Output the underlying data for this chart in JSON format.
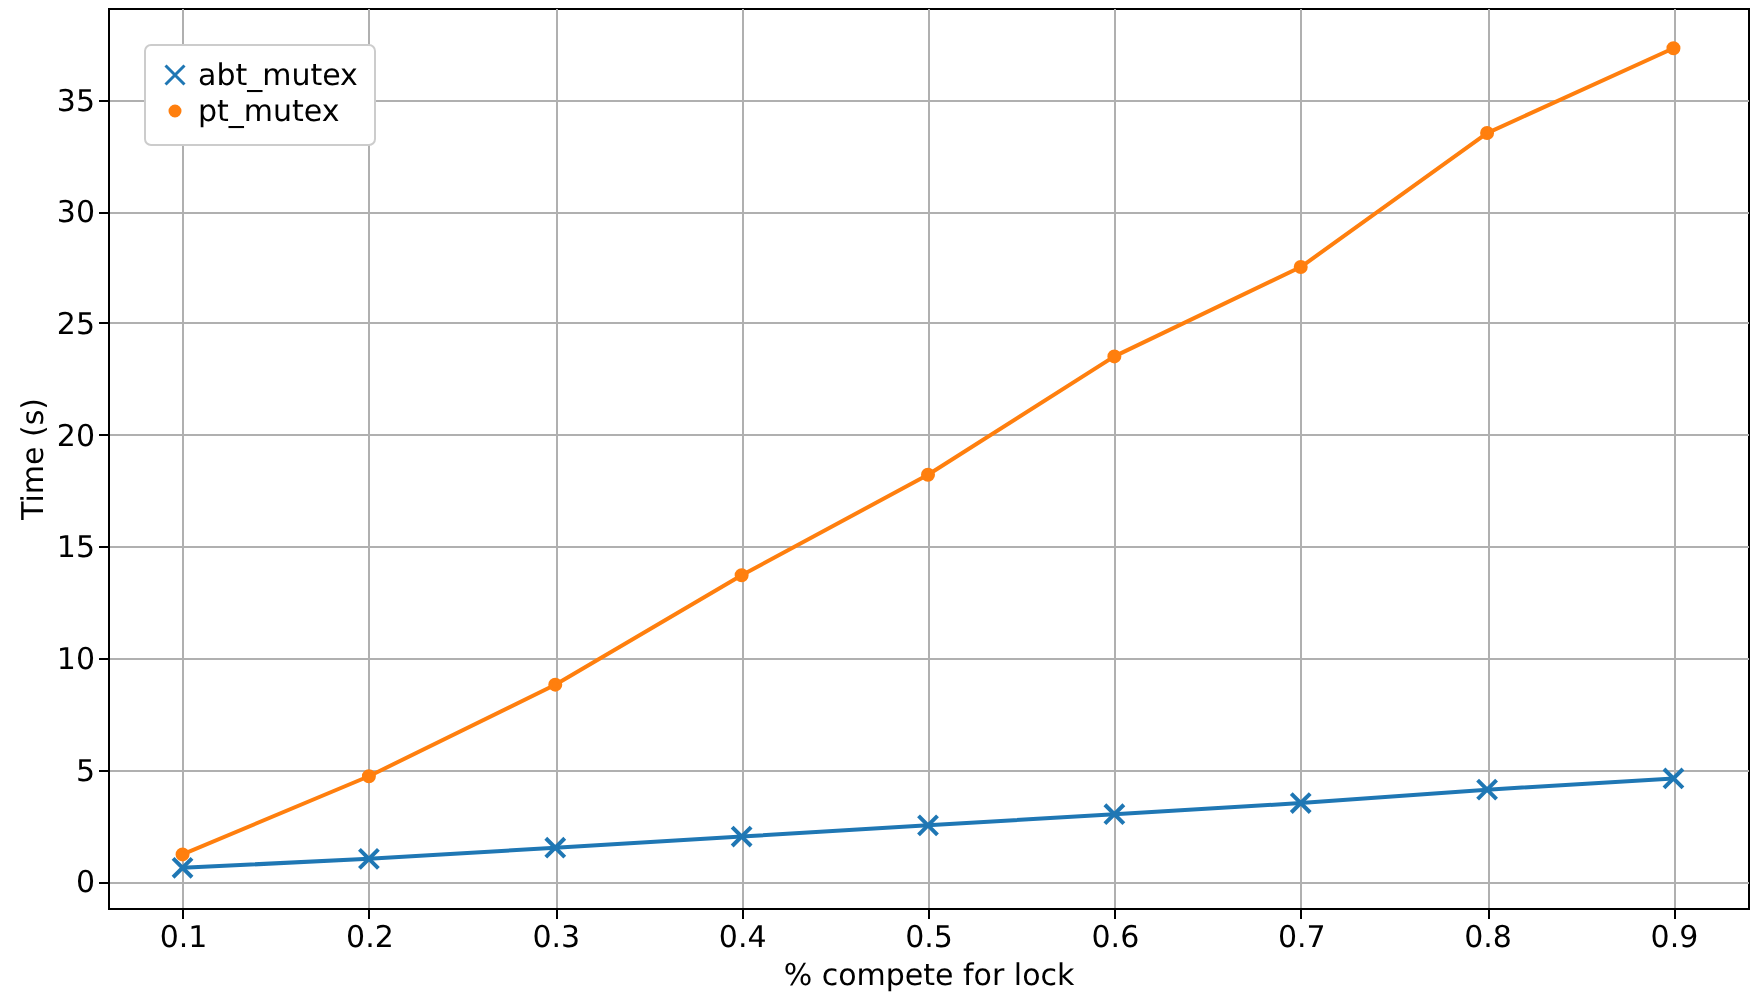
{
  "chart_data": {
    "type": "line",
    "xlabel": "% compete for lock",
    "ylabel": "Time (s)",
    "x": [
      0.1,
      0.2,
      0.3,
      0.4,
      0.5,
      0.6,
      0.7,
      0.8,
      0.9
    ],
    "series": [
      {
        "name": "abt_mutex",
        "color": "#1f77b4",
        "marker": "cross",
        "values": [
          0.6,
          1.0,
          1.5,
          2.0,
          2.5,
          3.0,
          3.5,
          4.1,
          4.6
        ]
      },
      {
        "name": "pt_mutex",
        "color": "#ff7f0e",
        "marker": "circle",
        "values": [
          1.2,
          4.7,
          8.8,
          13.7,
          18.2,
          23.5,
          27.5,
          33.5,
          37.3
        ]
      }
    ],
    "xlim": [
      0.06,
      0.94
    ],
    "xticks": [
      0.1,
      0.2,
      0.3,
      0.4,
      0.5,
      0.6,
      0.7,
      0.8,
      0.9
    ],
    "ylim": [
      -1.2,
      39.1
    ],
    "yticks": [
      0,
      5,
      10,
      15,
      20,
      25,
      30,
      35
    ],
    "grid": true,
    "legend": "top left"
  }
}
